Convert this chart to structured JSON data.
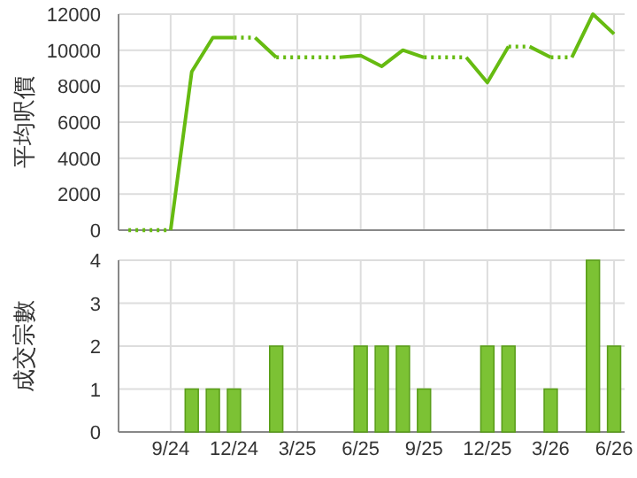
{
  "chart_data": [
    {
      "type": "line",
      "ylabel": "平均呎價",
      "xlim": [
        "2024-06-17",
        "2026-06-16"
      ],
      "xticks": [
        {
          "value": "2024-09",
          "label": null
        },
        {
          "value": "2024-12",
          "label": null
        },
        {
          "value": "2025-03",
          "label": null
        },
        {
          "value": "2025-06",
          "label": null
        },
        {
          "value": "2025-09",
          "label": null
        },
        {
          "value": "2025-12",
          "label": null
        },
        {
          "value": "2026-03",
          "label": null
        },
        {
          "value": "2026-06",
          "label": null
        }
      ],
      "ylim": [
        0,
        12000
      ],
      "yticks": [
        0,
        2000,
        4000,
        6000,
        8000,
        10000,
        12000
      ],
      "grid": true,
      "tick_labels": "y",
      "marker": "none",
      "series": [
        {
          "color": "#66bb11",
          "line_style": "dotted",
          "x": [
            "2024-07",
            "2024-09"
          ],
          "values": [
            0,
            0
          ]
        },
        {
          "color": "#66bb11",
          "line_style": "solid",
          "x": [
            "2024-09",
            "2024-10",
            "2024-11",
            "2024-12"
          ],
          "values": [
            0,
            8800,
            10700,
            10700
          ]
        },
        {
          "color": "#66bb11",
          "line_style": "dotted",
          "x": [
            "2024-12",
            "2025-01"
          ],
          "values": [
            10700,
            10700
          ]
        },
        {
          "color": "#66bb11",
          "line_style": "solid",
          "x": [
            "2025-01",
            "2025-02"
          ],
          "values": [
            10700,
            9600
          ]
        },
        {
          "color": "#66bb11",
          "line_style": "dotted",
          "x": [
            "2025-02",
            "2025-05"
          ],
          "values": [
            9600,
            9600
          ]
        },
        {
          "color": "#66bb11",
          "line_style": "solid",
          "x": [
            "2025-05",
            "2025-06",
            "2025-07",
            "2025-08",
            "2025-09"
          ],
          "values": [
            9600,
            9700,
            9100,
            10000,
            9600
          ]
        },
        {
          "color": "#66bb11",
          "line_style": "dotted",
          "x": [
            "2025-09",
            "2025-11"
          ],
          "values": [
            9600,
            9600
          ]
        },
        {
          "color": "#66bb11",
          "line_style": "solid",
          "x": [
            "2025-11",
            "2025-12",
            "2026-01"
          ],
          "values": [
            9600,
            8200,
            10200
          ]
        },
        {
          "color": "#66bb11",
          "line_style": "dotted",
          "x": [
            "2026-01",
            "2026-02"
          ],
          "values": [
            10200,
            10200
          ]
        },
        {
          "color": "#66bb11",
          "line_style": "solid",
          "x": [
            "2026-02",
            "2026-03"
          ],
          "values": [
            10200,
            9600
          ]
        },
        {
          "color": "#66bb11",
          "line_style": "dotted",
          "x": [
            "2026-03",
            "2026-04"
          ],
          "values": [
            9600,
            9600
          ]
        },
        {
          "color": "#66bb11",
          "line_style": "solid",
          "x": [
            "2026-04",
            "2026-05",
            "2026-06"
          ],
          "values": [
            9600,
            12000,
            10900
          ]
        }
      ]
    },
    {
      "type": "bar",
      "ylabel": "成交宗數",
      "x": [
        "2024-10",
        "2024-11",
        "2024-12",
        "2025-02",
        "2025-06",
        "2025-07",
        "2025-08",
        "2025-09",
        "2025-12",
        "2026-01",
        "2026-03",
        "2026-05",
        "2026-06"
      ],
      "values": [
        1,
        1,
        1,
        2,
        2,
        2,
        2,
        1,
        2,
        2,
        1,
        4,
        2
      ],
      "color": "#7cc234",
      "xlim": [
        "2024-06-17",
        "2026-06-16"
      ],
      "xticks": [
        {
          "value": "2024-09",
          "label": "9/24"
        },
        {
          "value": "2024-12",
          "label": "12/24"
        },
        {
          "value": "2025-03",
          "label": "3/25"
        },
        {
          "value": "2025-06",
          "label": "6/25"
        },
        {
          "value": "2025-09",
          "label": "9/25"
        },
        {
          "value": "2025-12",
          "label": "12/25"
        },
        {
          "value": "2026-03",
          "label": "3/26"
        },
        {
          "value": "2026-06",
          "label": "6/26"
        }
      ],
      "ylim": [
        0,
        4
      ],
      "yticks": [
        0,
        1,
        2,
        3,
        4
      ],
      "grid": true
    }
  ]
}
